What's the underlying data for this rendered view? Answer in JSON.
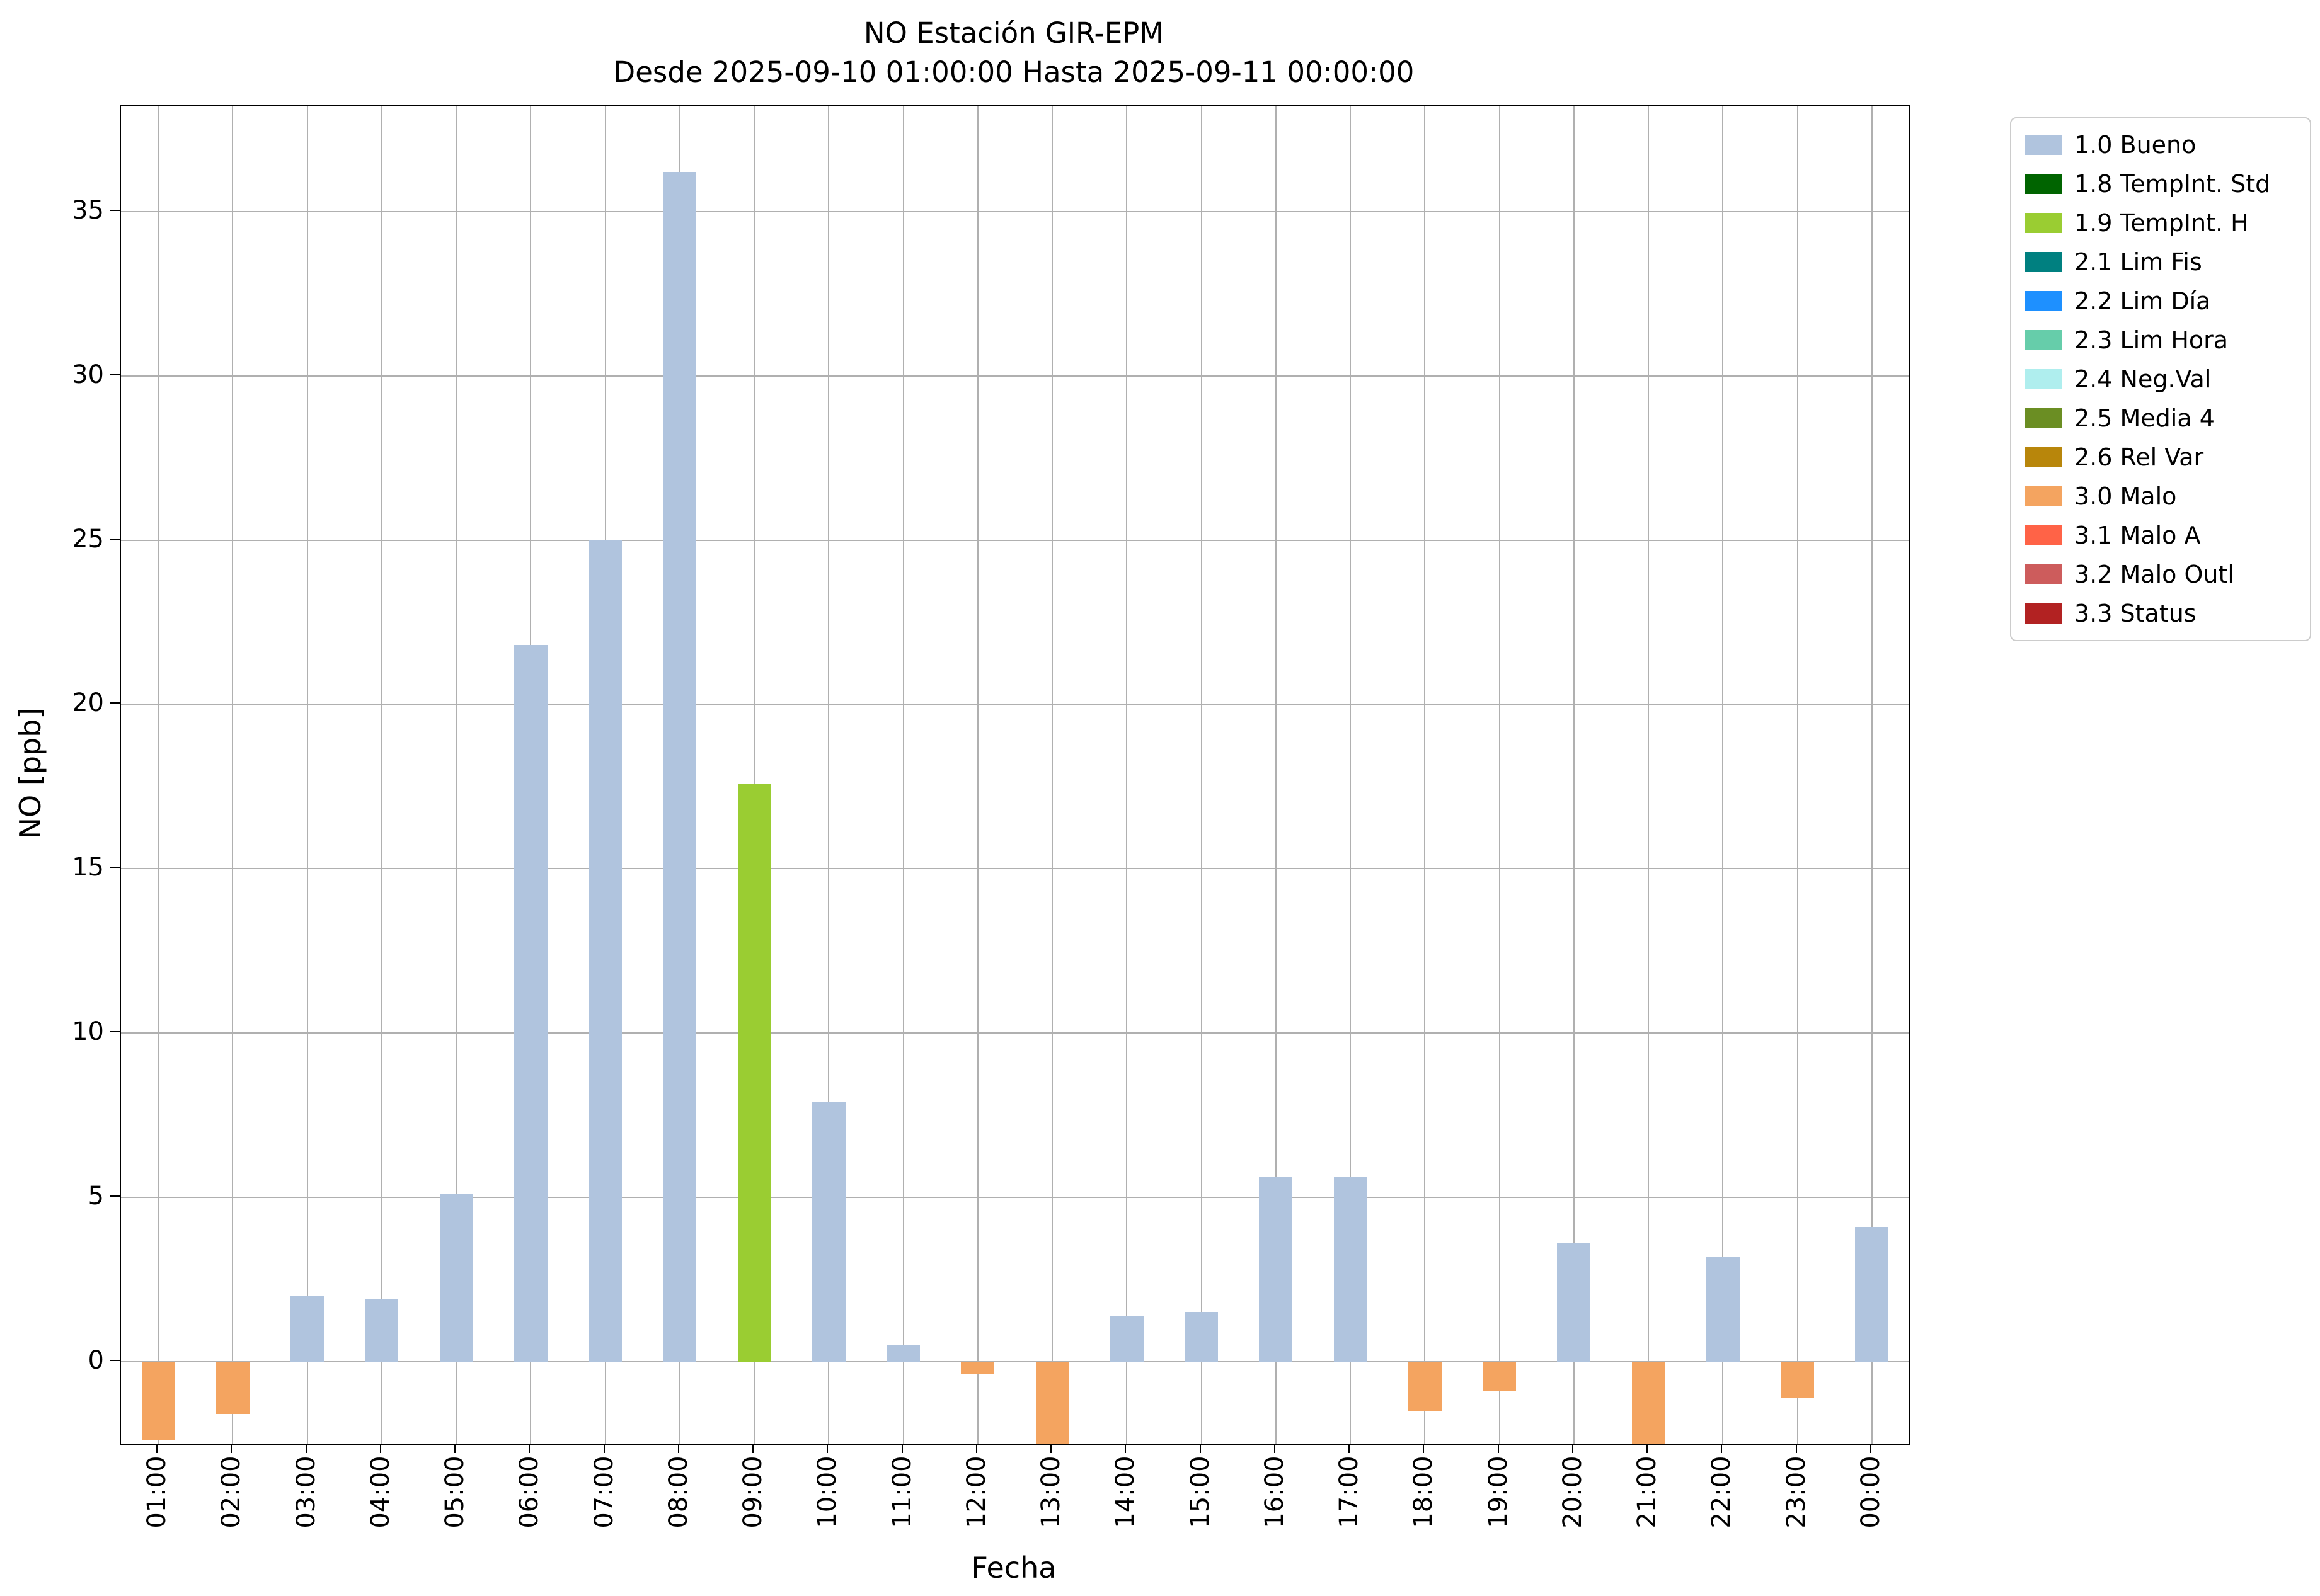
{
  "figure": {
    "title_line1": "NO Estación GIR-EPM",
    "title_line2": "Desde 2025-09-10 01:00:00 Hasta 2025-09-11 00:00:00"
  },
  "chart_data": {
    "type": "bar",
    "title": "NO Estación GIR-EPM",
    "subtitle": "Desde 2025-09-10 01:00:00 Hasta 2025-09-11 00:00:00",
    "xlabel": "Fecha",
    "ylabel": "NO [ppb]",
    "ylim": [
      -2.5,
      38.2
    ],
    "yticks": [
      0,
      5,
      10,
      15,
      20,
      25,
      30,
      35
    ],
    "grid": true,
    "legend_position": "outside upper right",
    "categories": [
      "01:00",
      "02:00",
      "03:00",
      "04:00",
      "05:00",
      "06:00",
      "07:00",
      "08:00",
      "09:00",
      "10:00",
      "11:00",
      "12:00",
      "13:00",
      "14:00",
      "15:00",
      "16:00",
      "17:00",
      "18:00",
      "19:00",
      "20:00",
      "21:00",
      "22:00",
      "23:00",
      "00:00"
    ],
    "values": [
      -2.4,
      -1.6,
      2.0,
      1.9,
      5.1,
      21.8,
      25.0,
      36.2,
      17.6,
      7.9,
      0.5,
      -0.4,
      -2.5,
      1.4,
      1.5,
      5.6,
      5.6,
      -1.5,
      -0.9,
      3.6,
      -2.5,
      3.2,
      -1.1,
      4.1
    ],
    "statuses": [
      "3.0 Malo",
      "3.0 Malo",
      "1.0 Bueno",
      "1.0 Bueno",
      "1.0 Bueno",
      "1.0 Bueno",
      "1.0 Bueno",
      "1.0 Bueno",
      "1.9 TempInt. H",
      "1.0 Bueno",
      "1.0 Bueno",
      "3.0 Malo",
      "3.0 Malo",
      "1.0 Bueno",
      "1.0 Bueno",
      "1.0 Bueno",
      "1.0 Bueno",
      "3.0 Malo",
      "3.0 Malo",
      "1.0 Bueno",
      "3.0 Malo",
      "1.0 Bueno",
      "3.0 Malo",
      "1.0 Bueno"
    ],
    "legend": [
      {
        "label": "1.0 Bueno",
        "color": "#b0c4de"
      },
      {
        "label": "1.8 TempInt. Std",
        "color": "#006400"
      },
      {
        "label": "1.9 TempInt. H",
        "color": "#9acd32"
      },
      {
        "label": "2.1 Lim Fis",
        "color": "#008080"
      },
      {
        "label": "2.2 Lim Día",
        "color": "#1e90ff"
      },
      {
        "label": "2.3 Lim Hora",
        "color": "#66cdaa"
      },
      {
        "label": "2.4 Neg.Val",
        "color": "#afeeee"
      },
      {
        "label": "2.5 Media 4",
        "color": "#6b8e23"
      },
      {
        "label": "2.6 Rel Var",
        "color": "#b8860b"
      },
      {
        "label": "3.0 Malo",
        "color": "#f4a460"
      },
      {
        "label": "3.1 Malo A",
        "color": "#ff6347"
      },
      {
        "label": "3.2 Malo Outl",
        "color": "#cd5c5c"
      },
      {
        "label": "3.3 Status",
        "color": "#b22222"
      }
    ]
  }
}
